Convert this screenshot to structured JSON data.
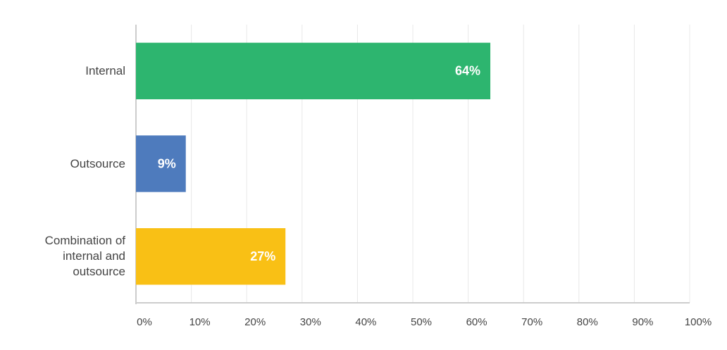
{
  "chart_data": {
    "type": "bar",
    "orientation": "horizontal",
    "categories": [
      "Internal",
      "Outsource",
      "Combination of internal and outsource"
    ],
    "values": [
      64,
      9,
      27
    ],
    "value_labels": [
      "64%",
      "9%",
      "27%"
    ],
    "colors": [
      "#2db56f",
      "#4e7bbd",
      "#f9c015"
    ],
    "xlim": [
      0,
      100
    ],
    "xticks": [
      {
        "value": 0,
        "label": "0%"
      },
      {
        "value": 10,
        "label": "10%"
      },
      {
        "value": 20,
        "label": "20%"
      },
      {
        "value": 30,
        "label": "30%"
      },
      {
        "value": 40,
        "label": "40%"
      },
      {
        "value": 50,
        "label": "50%"
      },
      {
        "value": 60,
        "label": "60%"
      },
      {
        "value": 70,
        "label": "70%"
      },
      {
        "value": 80,
        "label": "80%"
      },
      {
        "value": 90,
        "label": "90%"
      },
      {
        "value": 100,
        "label": "100%"
      }
    ],
    "grid": true
  }
}
